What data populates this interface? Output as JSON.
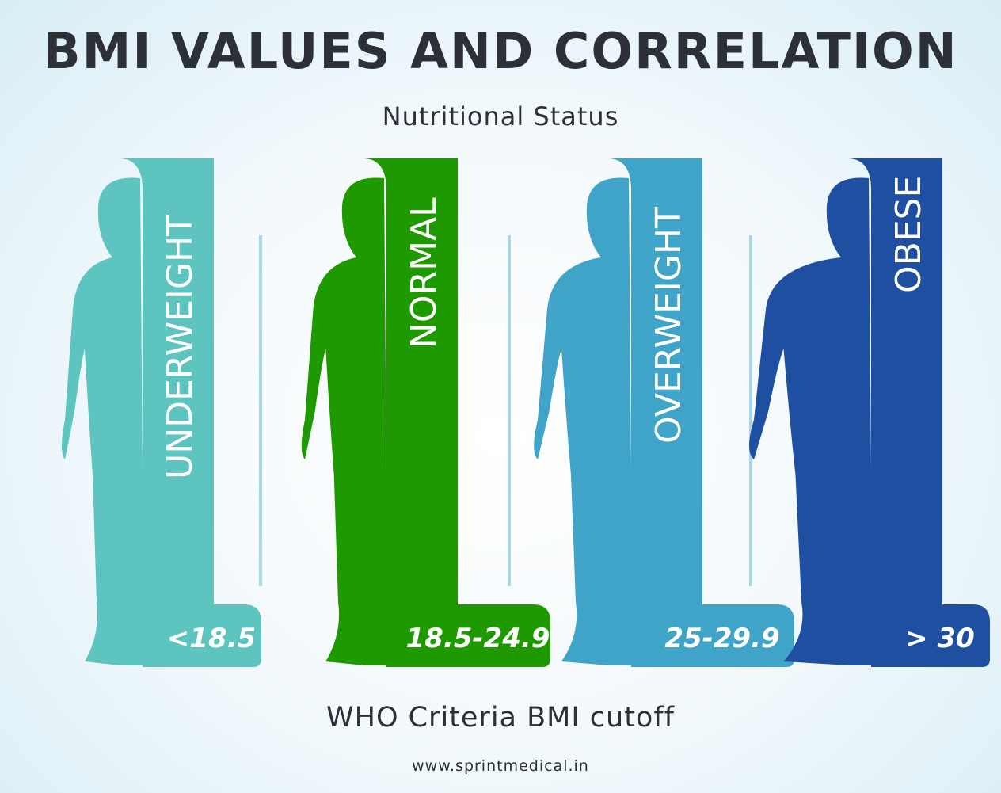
{
  "title": "BMI VALUES AND CORRELATION",
  "subtitle": "Nutritional Status",
  "footer": "WHO Criteria BMI cutoff",
  "url": "www.sprintmedical.in",
  "categories": [
    {
      "label": "UNDERWEIGHT",
      "range": "<18.5",
      "color": "#5ec4c0"
    },
    {
      "label": "NORMAL",
      "range": "18.5-24.9",
      "color": "#1e9a00"
    },
    {
      "label": "OVERWEIGHT",
      "range": "25-29.9",
      "color": "#3fa4c8"
    },
    {
      "label": "OBESE",
      "range": "> 30",
      "color": "#1f4fa0"
    }
  ],
  "divider_color": "#a9d6e6"
}
